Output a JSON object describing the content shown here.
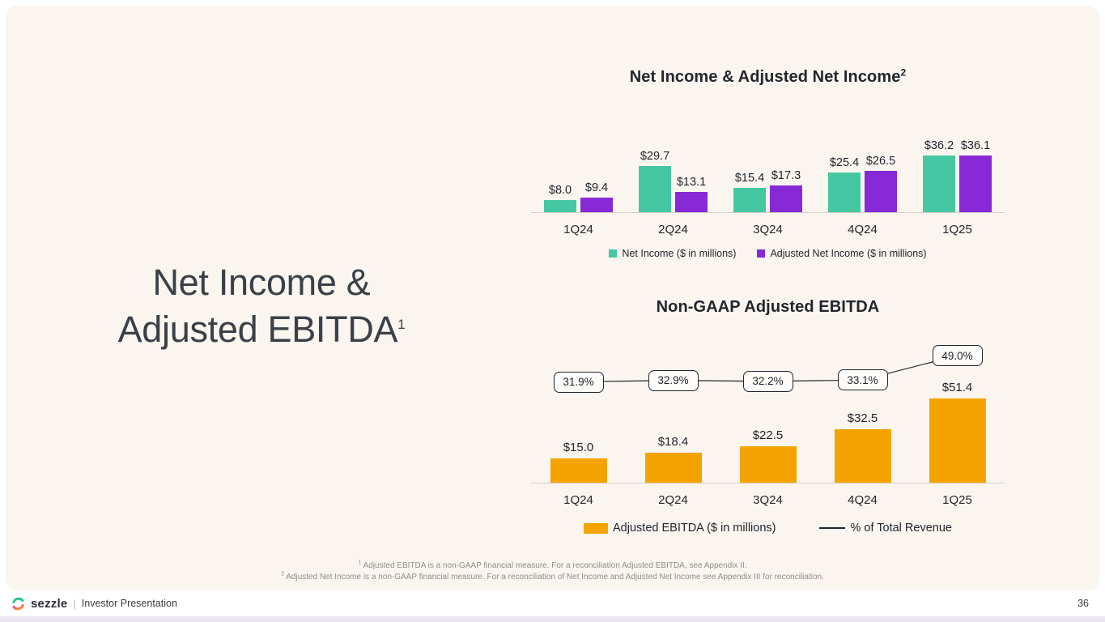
{
  "slide": {
    "title_line1": "Net Income &",
    "title_line2": "Adjusted EBITDA",
    "title_superscript": "1",
    "page_number": "36"
  },
  "footer": {
    "brand": "sezzle",
    "separator": "|",
    "label": "Investor Presentation"
  },
  "footnotes": {
    "line1_sup": "1",
    "line1": "Adjusted EBITDA is a non-GAAP financial measure. For a reconciliation Adjusted EBITDA, see Appendix II.",
    "line2_sup": "2",
    "line2": "Adjusted Net Income is a non-GAAP financial measure. For a reconciliation of Net Income and Adjusted Net Income see Appendix III for reconciliation."
  },
  "colors": {
    "background": "#FAF5EF",
    "net_income_teal": "#45C8A2",
    "adjusted_net_income_purple": "#8729D6",
    "ebitda_orange": "#F5A300",
    "text_dark": "#22262C"
  },
  "chart_data": [
    {
      "type": "bar",
      "title": "Net Income & Adjusted Net Income",
      "title_superscript": "2",
      "categories": [
        "1Q24",
        "2Q24",
        "3Q24",
        "4Q24",
        "1Q25"
      ],
      "series": [
        {
          "name": "Net Income ($ in millions)",
          "color": "#45C8A2",
          "values": [
            8.0,
            29.7,
            15.4,
            25.4,
            36.2
          ],
          "labels": [
            "$8.0",
            "$29.7",
            "$15.4",
            "$25.4",
            "$36.2"
          ]
        },
        {
          "name": "Adjusted Net Income ($ in millions)",
          "color": "#8729D6",
          "values": [
            9.4,
            13.1,
            17.3,
            26.5,
            36.1
          ],
          "labels": [
            "$9.4",
            "$13.1",
            "$17.3",
            "$26.5",
            "$36.1"
          ]
        }
      ],
      "ylim": [
        0,
        40
      ],
      "grid": false,
      "legend_position": "bottom"
    },
    {
      "type": "bar+line",
      "title": "Non-GAAP Adjusted EBITDA",
      "categories": [
        "1Q24",
        "2Q24",
        "3Q24",
        "4Q24",
        "1Q25"
      ],
      "bar_series": {
        "name": "Adjusted EBITDA ($ in millions)",
        "color": "#F5A300",
        "values": [
          15.0,
          18.4,
          22.5,
          32.5,
          51.4
        ],
        "labels": [
          "$15.0",
          "$18.4",
          "$22.5",
          "$32.5",
          "$51.4"
        ]
      },
      "line_series": {
        "name": "% of Total Revenue",
        "color": "#22262C",
        "values": [
          31.9,
          32.9,
          32.2,
          33.1,
          49.0
        ],
        "labels": [
          "31.9%",
          "32.9%",
          "32.2%",
          "33.1%",
          "49.0%"
        ]
      },
      "ylim": [
        0,
        55
      ],
      "grid": false,
      "legend_position": "bottom"
    }
  ]
}
